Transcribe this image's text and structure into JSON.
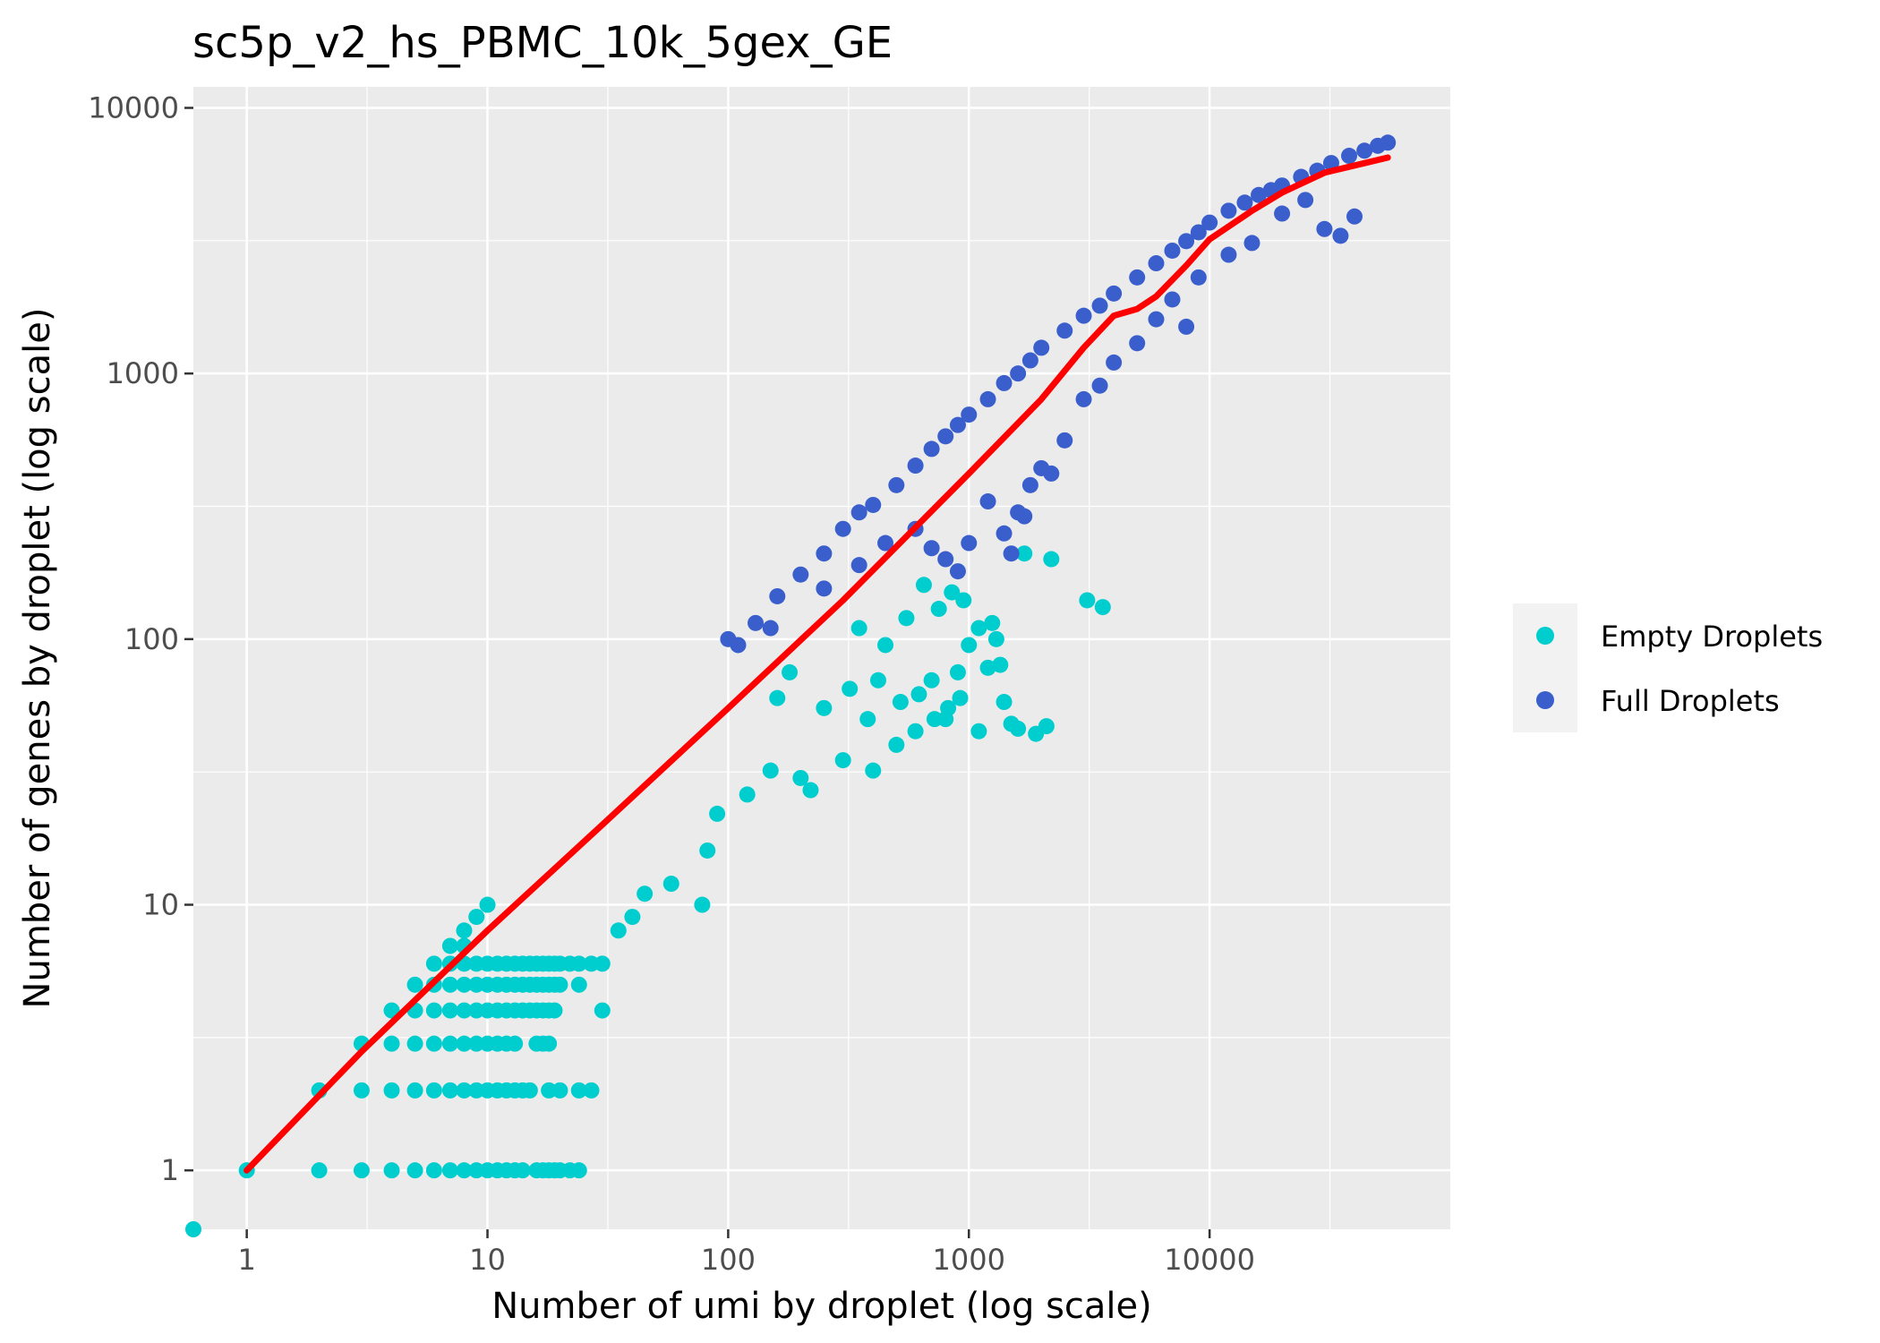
{
  "chart_data": {
    "type": "scatter",
    "title": "sc5p_v2_hs_PBMC_10k_5gex_GE",
    "xlabel": "Number of umi by droplet (log scale)",
    "ylabel": "Number of genes by droplet (log scale)",
    "x_scale": "log10",
    "y_scale": "log10",
    "xlim": [
      0.6,
      100000
    ],
    "ylim": [
      0.6,
      12000
    ],
    "x_ticks": [
      1,
      10,
      100,
      1000,
      10000
    ],
    "x_tick_labels": [
      "1",
      "10",
      "100",
      "1000",
      "10000"
    ],
    "y_ticks": [
      1,
      10,
      100,
      1000,
      10000
    ],
    "y_tick_labels": [
      "1",
      "10",
      "100",
      "1000",
      "10000"
    ],
    "grid": true,
    "legend_position": "right",
    "series": [
      {
        "name": "Empty Droplets",
        "color": "#00CDCD",
        "points": [
          [
            0.6,
            0.6
          ],
          [
            1,
            1
          ],
          [
            2,
            1
          ],
          [
            2,
            2
          ],
          [
            3,
            1
          ],
          [
            3,
            2
          ],
          [
            3,
            3
          ],
          [
            4,
            1
          ],
          [
            4,
            2
          ],
          [
            4,
            3
          ],
          [
            4,
            4
          ],
          [
            5,
            1
          ],
          [
            5,
            2
          ],
          [
            5,
            3
          ],
          [
            5,
            4
          ],
          [
            5,
            5
          ],
          [
            6,
            1
          ],
          [
            6,
            2
          ],
          [
            6,
            3
          ],
          [
            6,
            4
          ],
          [
            6,
            5
          ],
          [
            6,
            6
          ],
          [
            7,
            1
          ],
          [
            7,
            2
          ],
          [
            7,
            3
          ],
          [
            7,
            4
          ],
          [
            7,
            5
          ],
          [
            7,
            6
          ],
          [
            7,
            7
          ],
          [
            8,
            1
          ],
          [
            8,
            2
          ],
          [
            8,
            3
          ],
          [
            8,
            4
          ],
          [
            8,
            5
          ],
          [
            8,
            6
          ],
          [
            8,
            7
          ],
          [
            8,
            8
          ],
          [
            9,
            1
          ],
          [
            9,
            2
          ],
          [
            9,
            3
          ],
          [
            9,
            4
          ],
          [
            9,
            5
          ],
          [
            9,
            6
          ],
          [
            9,
            9
          ],
          [
            10,
            1
          ],
          [
            10,
            2
          ],
          [
            10,
            3
          ],
          [
            10,
            4
          ],
          [
            10,
            5
          ],
          [
            10,
            6
          ],
          [
            10,
            10
          ],
          [
            11,
            1
          ],
          [
            11,
            2
          ],
          [
            11,
            3
          ],
          [
            11,
            4
          ],
          [
            11,
            5
          ],
          [
            11,
            6
          ],
          [
            12,
            1
          ],
          [
            12,
            2
          ],
          [
            12,
            3
          ],
          [
            12,
            4
          ],
          [
            12,
            5
          ],
          [
            12,
            6
          ],
          [
            13,
            1
          ],
          [
            13,
            2
          ],
          [
            13,
            3
          ],
          [
            13,
            4
          ],
          [
            13,
            5
          ],
          [
            13,
            6
          ],
          [
            14,
            1
          ],
          [
            14,
            2
          ],
          [
            14,
            4
          ],
          [
            14,
            5
          ],
          [
            14,
            6
          ],
          [
            15,
            2
          ],
          [
            15,
            4
          ],
          [
            15,
            5
          ],
          [
            15,
            6
          ],
          [
            16,
            1
          ],
          [
            16,
            3
          ],
          [
            16,
            4
          ],
          [
            16,
            5
          ],
          [
            16,
            6
          ],
          [
            17,
            1
          ],
          [
            17,
            3
          ],
          [
            17,
            4
          ],
          [
            17,
            5
          ],
          [
            17,
            6
          ],
          [
            18,
            1
          ],
          [
            18,
            2
          ],
          [
            18,
            3
          ],
          [
            18,
            4
          ],
          [
            18,
            5
          ],
          [
            18,
            6
          ],
          [
            19,
            1
          ],
          [
            19,
            4
          ],
          [
            19,
            5
          ],
          [
            19,
            6
          ],
          [
            20,
            1
          ],
          [
            20,
            2
          ],
          [
            20,
            5
          ],
          [
            20,
            6
          ],
          [
            22,
            1
          ],
          [
            22,
            6
          ],
          [
            24,
            1
          ],
          [
            24,
            2
          ],
          [
            24,
            5
          ],
          [
            24,
            6
          ],
          [
            27,
            2
          ],
          [
            27,
            6
          ],
          [
            30,
            4
          ],
          [
            30,
            6
          ],
          [
            35,
            8
          ],
          [
            40,
            9
          ],
          [
            45,
            11
          ],
          [
            58,
            12
          ],
          [
            78,
            10
          ],
          [
            82,
            16
          ],
          [
            90,
            22
          ],
          [
            120,
            26
          ],
          [
            150,
            32
          ],
          [
            200,
            30
          ],
          [
            220,
            27
          ],
          [
            300,
            35
          ],
          [
            400,
            32
          ],
          [
            500,
            40
          ],
          [
            600,
            45
          ],
          [
            700,
            70
          ],
          [
            800,
            50
          ],
          [
            900,
            75
          ],
          [
            1000,
            95
          ],
          [
            1100,
            45
          ],
          [
            1200,
            78
          ],
          [
            1400,
            58
          ],
          [
            1500,
            48
          ],
          [
            1600,
            46
          ],
          [
            1700,
            210
          ],
          [
            1900,
            44
          ],
          [
            2100,
            47
          ],
          [
            2200,
            200
          ],
          [
            3100,
            140
          ],
          [
            3600,
            132
          ],
          [
            350,
            110
          ],
          [
            450,
            95
          ],
          [
            550,
            120
          ],
          [
            650,
            160
          ],
          [
            750,
            130
          ],
          [
            850,
            150
          ],
          [
            950,
            140
          ],
          [
            1100,
            110
          ],
          [
            1250,
            115
          ],
          [
            1350,
            80
          ],
          [
            1300,
            100
          ],
          [
            160,
            60
          ],
          [
            180,
            75
          ],
          [
            250,
            55
          ],
          [
            320,
            65
          ],
          [
            380,
            50
          ],
          [
            420,
            70
          ],
          [
            520,
            58
          ],
          [
            620,
            62
          ],
          [
            720,
            50
          ],
          [
            820,
            55
          ],
          [
            920,
            60
          ]
        ]
      },
      {
        "name": "Full Droplets",
        "color": "#3A5FCD",
        "points": [
          [
            100,
            100
          ],
          [
            110,
            95
          ],
          [
            130,
            115
          ],
          [
            160,
            145
          ],
          [
            200,
            175
          ],
          [
            250,
            210
          ],
          [
            300,
            260
          ],
          [
            350,
            300
          ],
          [
            400,
            320
          ],
          [
            500,
            380
          ],
          [
            600,
            450
          ],
          [
            700,
            520
          ],
          [
            800,
            580
          ],
          [
            900,
            640
          ],
          [
            1000,
            700
          ],
          [
            1200,
            800
          ],
          [
            1400,
            920
          ],
          [
            1600,
            1000
          ],
          [
            1800,
            1120
          ],
          [
            2000,
            1250
          ],
          [
            2500,
            1450
          ],
          [
            3000,
            1650
          ],
          [
            3500,
            1800
          ],
          [
            4000,
            2000
          ],
          [
            5000,
            2300
          ],
          [
            6000,
            2600
          ],
          [
            7000,
            2900
          ],
          [
            8000,
            3150
          ],
          [
            9000,
            3400
          ],
          [
            10000,
            3700
          ],
          [
            12000,
            4100
          ],
          [
            14000,
            4400
          ],
          [
            16000,
            4700
          ],
          [
            18000,
            4900
          ],
          [
            20000,
            5100
          ],
          [
            24000,
            5500
          ],
          [
            28000,
            5800
          ],
          [
            32000,
            6200
          ],
          [
            38000,
            6600
          ],
          [
            44000,
            6900
          ],
          [
            50000,
            7200
          ],
          [
            55000,
            7400
          ],
          [
            150,
            110
          ],
          [
            250,
            155
          ],
          [
            350,
            190
          ],
          [
            450,
            230
          ],
          [
            600,
            260
          ],
          [
            700,
            220
          ],
          [
            800,
            200
          ],
          [
            900,
            180
          ],
          [
            1000,
            230
          ],
          [
            1200,
            330
          ],
          [
            1400,
            250
          ],
          [
            1500,
            210
          ],
          [
            1600,
            300
          ],
          [
            1700,
            290
          ],
          [
            1800,
            380
          ],
          [
            2000,
            440
          ],
          [
            2200,
            420
          ],
          [
            2500,
            560
          ],
          [
            3000,
            800
          ],
          [
            3500,
            900
          ],
          [
            4000,
            1100
          ],
          [
            5000,
            1300
          ],
          [
            6000,
            1600
          ],
          [
            7000,
            1900
          ],
          [
            8000,
            1500
          ],
          [
            9000,
            2300
          ],
          [
            12000,
            2800
          ],
          [
            15000,
            3100
          ],
          [
            20000,
            4000
          ],
          [
            25000,
            4500
          ],
          [
            30000,
            3500
          ],
          [
            35000,
            3300
          ],
          [
            40000,
            3900
          ]
        ]
      }
    ],
    "trend_line": {
      "color": "#FF0000",
      "x": [
        1,
        3,
        10,
        30,
        100,
        300,
        1000,
        2000,
        3000,
        4000,
        5000,
        6000,
        8000,
        10000,
        15000,
        20000,
        30000,
        55000
      ],
      "y": [
        1,
        2.8,
        8,
        20,
        55,
        140,
        420,
        800,
        1250,
        1650,
        1750,
        1950,
        2550,
        3200,
        4100,
        4800,
        5700,
        6500
      ]
    }
  }
}
